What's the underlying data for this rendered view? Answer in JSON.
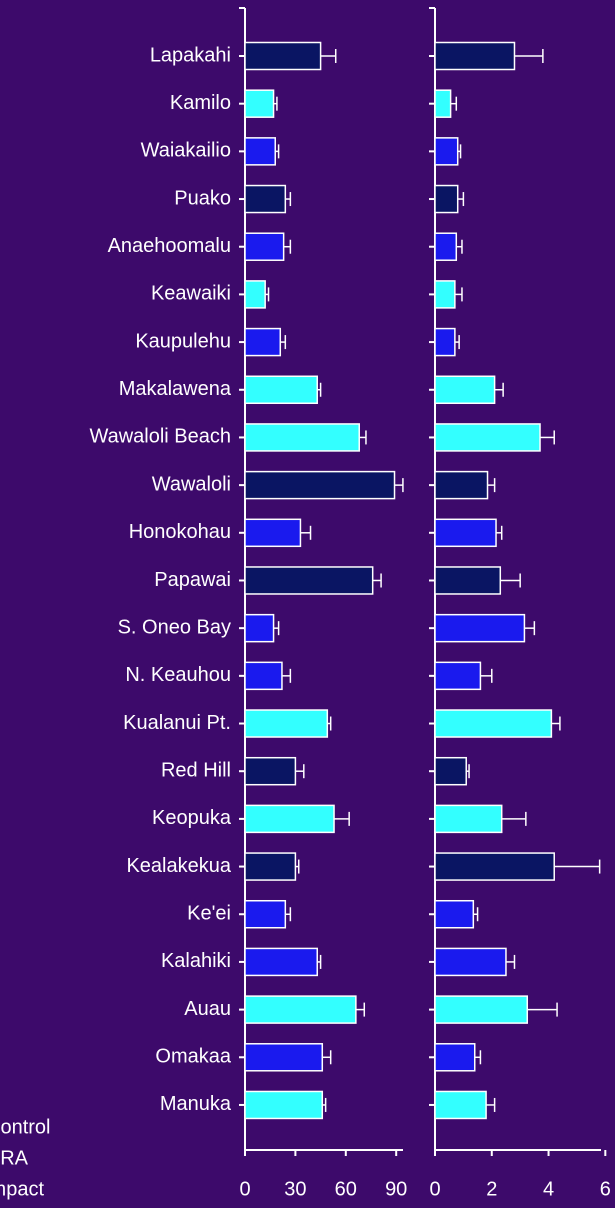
{
  "chart_data": {
    "type": "bar",
    "orientation": "horizontal",
    "categories": [
      "Lapakahi",
      "Kamilo",
      "Waiakailio",
      "Puako",
      "Anaehoomalu",
      "Keawaiki",
      "Kaupulehu",
      "Makalawena",
      "Wawaloli Beach",
      "Wawaloli",
      "Honokohau",
      "Papawai",
      "S. Oneo Bay",
      "N. Keauhou",
      "Kualanui Pt.",
      "Red Hill",
      "Keopuka",
      "Kealakekua",
      "Ke'ei",
      "Kalahiki",
      "Auau",
      "Omakaa",
      "Manuka"
    ],
    "colors": [
      "#0a1563",
      "#33ffff",
      "#1a1aee",
      "#0a1563",
      "#1a1aee",
      "#33ffff",
      "#1a1aee",
      "#33ffff",
      "#33ffff",
      "#0a1563",
      "#1a1aee",
      "#0a1563",
      "#1a1aee",
      "#1a1aee",
      "#33ffff",
      "#0a1563",
      "#33ffff",
      "#0a1563",
      "#1a1aee",
      "#1a1aee",
      "#33ffff",
      "#1a1aee",
      "#33ffff"
    ],
    "legend": [
      {
        "name": "Control",
        "color": "#0a1563"
      },
      {
        "name": "FRA",
        "color": "#1a1aee"
      },
      {
        "name": "Impact",
        "color": "#33ffff"
      }
    ],
    "panels": [
      {
        "values": [
          45,
          17,
          18,
          24,
          23,
          12,
          21,
          43,
          68,
          89,
          33,
          76,
          17,
          22,
          49,
          30,
          53,
          30,
          24,
          43,
          66,
          46,
          46
        ],
        "errors": [
          9,
          2,
          2,
          3,
          4,
          2,
          3,
          2,
          4,
          5,
          6,
          5,
          3,
          5,
          2,
          5,
          9,
          2,
          3,
          2,
          5,
          5,
          2
        ],
        "xlim": [
          0,
          100
        ],
        "xticks": [
          0,
          30,
          60,
          90
        ]
      },
      {
        "values": [
          2.8,
          0.55,
          0.8,
          0.8,
          0.75,
          0.7,
          0.7,
          2.1,
          3.7,
          1.85,
          2.15,
          2.3,
          3.15,
          1.6,
          4.1,
          1.1,
          2.35,
          4.2,
          1.35,
          2.5,
          3.25,
          1.4,
          1.8
        ],
        "errors": [
          1.0,
          0.2,
          0.1,
          0.2,
          0.2,
          0.25,
          0.15,
          0.3,
          0.5,
          0.25,
          0.2,
          0.7,
          0.35,
          0.4,
          0.3,
          0.1,
          0.85,
          1.6,
          0.15,
          0.3,
          1.05,
          0.2,
          0.3
        ],
        "xlim": [
          0,
          6.2
        ],
        "xticks": [
          0,
          2,
          4,
          6
        ]
      }
    ]
  }
}
